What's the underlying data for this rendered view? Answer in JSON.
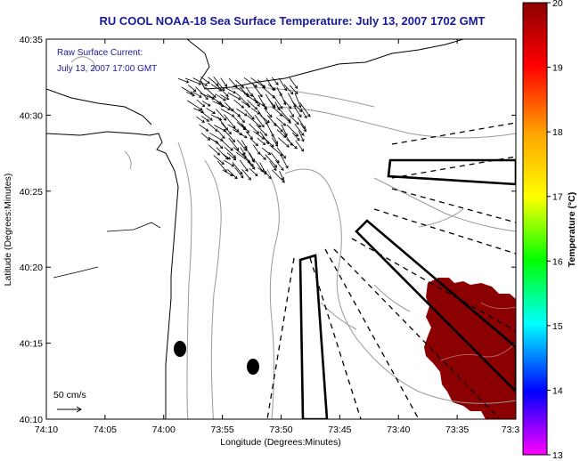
{
  "title": "RU COOL  NOAA-18  Sea Surface Temperature:  July 13, 2007 1702 GMT",
  "annotation": {
    "line1": "Raw Surface Current:",
    "line2": "July 13, 2007 17:00 GMT"
  },
  "scale_label": "50 cm/s",
  "axes": {
    "xlabel": "Longitude (Degrees:Minutes)",
    "ylabel": "Latitude (Degrees:Minutes)",
    "x_ticks": [
      "74:10",
      "74:05",
      "74:00",
      "73:55",
      "73:50",
      "73:45",
      "73:40",
      "73:35",
      "73:3"
    ],
    "y_ticks": [
      "40:35",
      "40:30",
      "40:25",
      "40:20",
      "40:15",
      "40:10"
    ]
  },
  "colorbar": {
    "label": "Temperature (°C)",
    "ticks": [
      "20",
      "19",
      "18",
      "17",
      "16",
      "15",
      "14",
      "13"
    ],
    "min": 13,
    "max": 20,
    "colors": [
      "#ff00ff",
      "#0000ff",
      "#00ffff",
      "#00ff00",
      "#ffff00",
      "#ffa500",
      "#ff0000",
      "#8b0000"
    ]
  },
  "colors": {
    "title": "#1a1a99",
    "sst_patch": "#8b0000",
    "contour": "#999999"
  }
}
